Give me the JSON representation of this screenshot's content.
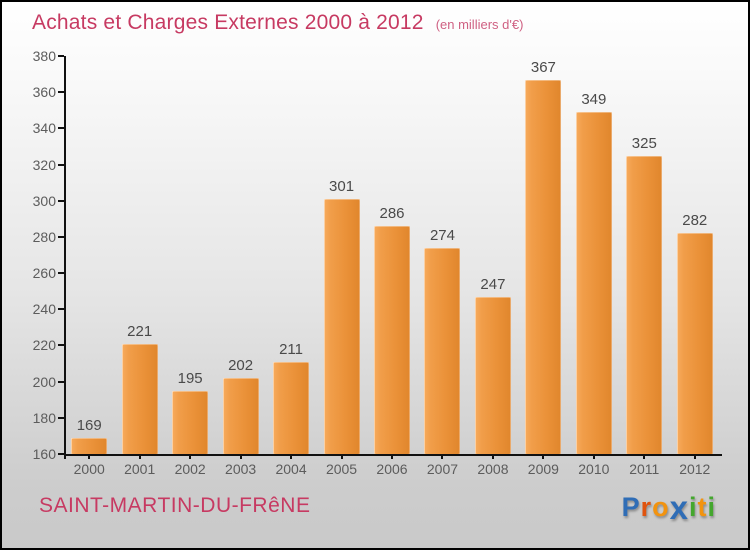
{
  "title": "Achats et Charges Externes 2000 à 2012",
  "subtitle": "(en milliers d'€)",
  "chart_data": {
    "type": "bar",
    "title": "Achats et Charges Externes 2000 à 2012",
    "subtitle": "(en milliers d'€)",
    "categories": [
      "2000",
      "2001",
      "2002",
      "2003",
      "2004",
      "2005",
      "2006",
      "2007",
      "2008",
      "2009",
      "2010",
      "2011",
      "2012"
    ],
    "values": [
      169,
      221,
      195,
      202,
      211,
      301,
      286,
      274,
      247,
      367,
      349,
      325,
      282
    ],
    "ylim": [
      160,
      380
    ],
    "ytick_step": 20,
    "grid": false,
    "legend": "none",
    "value_labels": true,
    "bar_color": "#ea9138"
  },
  "footer": {
    "commune": "SAINT-MARTIN-DU-FRêNE",
    "logo_letters": [
      {
        "ch": "P",
        "color": "#2f6db6"
      },
      {
        "ch": "r",
        "color": "#e0530e"
      },
      {
        "ch": "o",
        "color": "#f2930f"
      },
      {
        "ch": "x",
        "color": "#2f6db6"
      },
      {
        "ch": "i",
        "color": "#44a72e"
      },
      {
        "ch": "t",
        "color": "#f2930f"
      },
      {
        "ch": "i",
        "color": "#44a72e"
      }
    ]
  },
  "colors": {
    "title": "#c73a62",
    "commune": "#c73a62",
    "axis": "#111111",
    "tick_label": "#5c5c5c",
    "value_label": "#4a4a4a"
  }
}
